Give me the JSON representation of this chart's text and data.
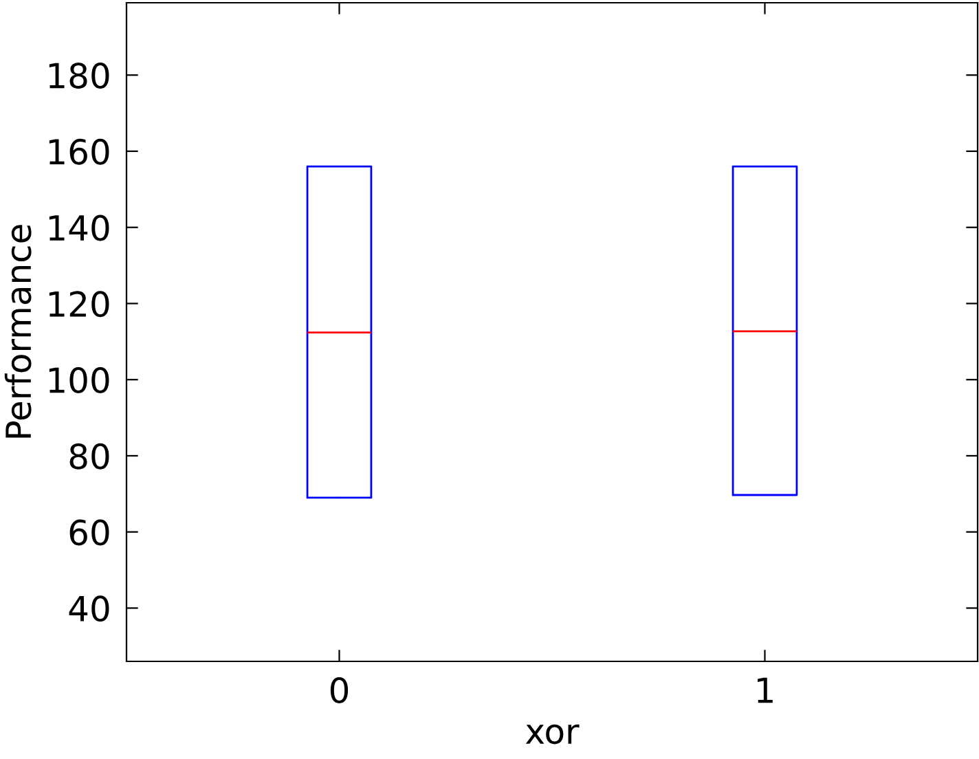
{
  "chart_data": {
    "type": "box",
    "xlabel": "xor",
    "ylabel": "Performance",
    "categories": [
      "0",
      "1"
    ],
    "boxes": [
      {
        "low": 69,
        "q1": 69,
        "median": 112.4,
        "q3": 156,
        "high": 156
      },
      {
        "low": 69.7,
        "q1": 69.7,
        "median": 112.7,
        "q3": 156,
        "high": 156
      }
    ],
    "color": "#0000ff",
    "ylim": [
      26,
      199
    ],
    "yticks": [
      40,
      60,
      80,
      100,
      120,
      140,
      160,
      180
    ],
    "grid": false,
    "legend": false
  }
}
